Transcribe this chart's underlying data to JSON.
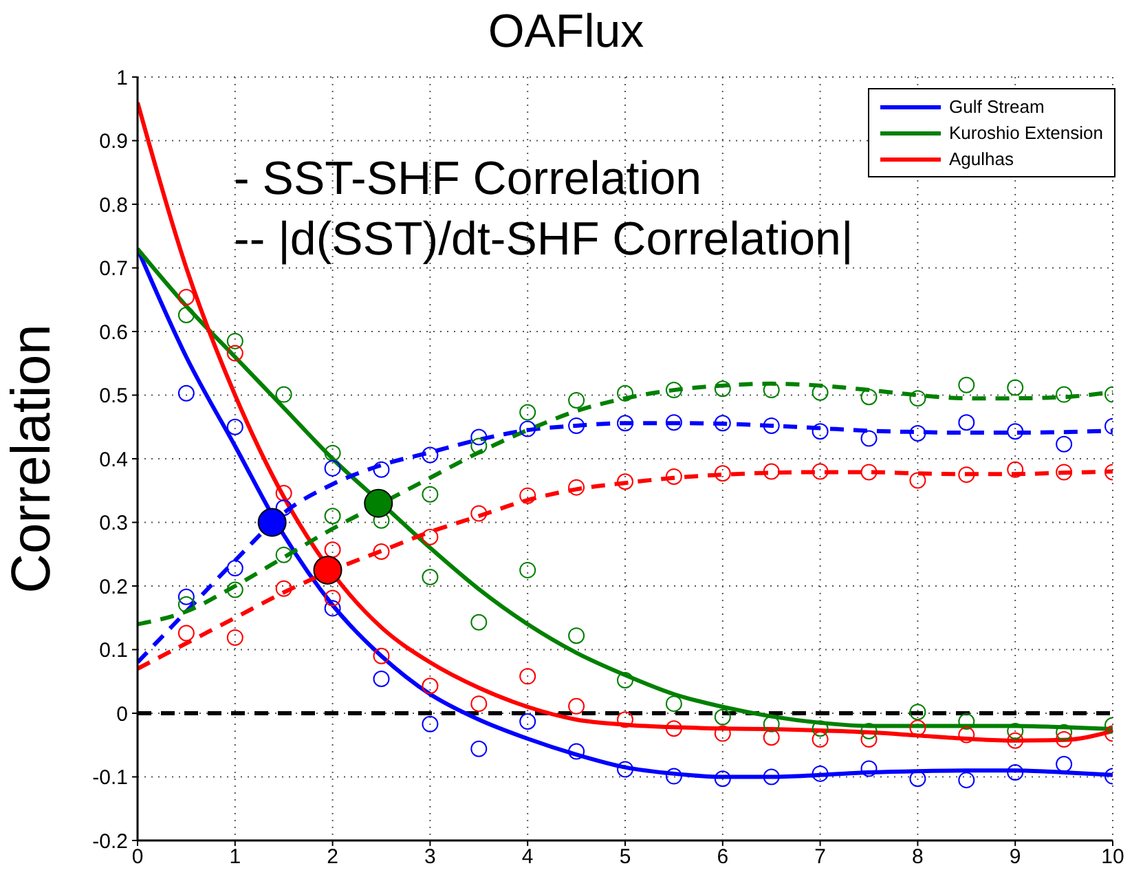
{
  "chart_data": {
    "type": "line",
    "title": "OAFlux",
    "ylabel": "Correlation",
    "annotations": [
      "- SST-SHF Correlation",
      "-- |d(SST)/dt-SHF Correlation|"
    ],
    "xlim": [
      0,
      10
    ],
    "xticks": [
      0,
      1,
      2,
      3,
      4,
      5,
      6,
      7,
      8,
      9,
      10
    ],
    "ylim": [
      -0.2,
      1
    ],
    "yticks": [
      -0.2,
      -0.1,
      0,
      0.1,
      0.2,
      0.3,
      0.4,
      0.5,
      0.6,
      0.7,
      0.8,
      0.9,
      1
    ],
    "grid": true,
    "legend": "top right",
    "ref_lines": [
      {
        "axis": "y",
        "value": 0,
        "color": "#000000",
        "line_style": "dashed"
      }
    ],
    "series": [
      {
        "type": "line",
        "name": "Gulf Stream",
        "color": "#0000ff",
        "line_style": "solid",
        "x": [
          0,
          0.5,
          1,
          1.5,
          2,
          2.5,
          3,
          3.5,
          4,
          4.5,
          5,
          5.5,
          6,
          6.5,
          7,
          7.5,
          8,
          8.5,
          9,
          9.5,
          10
        ],
        "values": [
          0.73,
          0.56,
          0.42,
          0.28,
          0.17,
          0.09,
          0.03,
          -0.01,
          -0.04,
          -0.065,
          -0.085,
          -0.095,
          -0.1,
          -0.1,
          -0.097,
          -0.093,
          -0.091,
          -0.09,
          -0.09,
          -0.093,
          -0.097
        ]
      },
      {
        "type": "line",
        "name": "Kuroshio Extension",
        "color": "#008000",
        "line_style": "solid",
        "x": [
          0,
          0.5,
          1,
          1.5,
          2,
          2.5,
          3,
          3.5,
          4,
          4.5,
          5,
          5.5,
          6,
          6.5,
          7,
          7.5,
          8,
          8.5,
          9,
          9.5,
          10
        ],
        "values": [
          0.73,
          0.64,
          0.56,
          0.48,
          0.4,
          0.33,
          0.26,
          0.195,
          0.14,
          0.095,
          0.06,
          0.03,
          0.01,
          -0.005,
          -0.015,
          -0.02,
          -0.02,
          -0.02,
          -0.02,
          -0.022,
          -0.025
        ]
      },
      {
        "type": "line",
        "name": "Agulhas",
        "color": "#ff0000",
        "line_style": "solid",
        "x": [
          0,
          0.5,
          1,
          1.5,
          2,
          2.5,
          3,
          3.5,
          4,
          4.5,
          5,
          5.5,
          6,
          6.5,
          7,
          7.5,
          8,
          8.5,
          9,
          9.5,
          10
        ],
        "values": [
          0.96,
          0.7,
          0.5,
          0.34,
          0.22,
          0.135,
          0.08,
          0.04,
          0.01,
          -0.01,
          -0.018,
          -0.022,
          -0.024,
          -0.025,
          -0.027,
          -0.03,
          -0.035,
          -0.04,
          -0.043,
          -0.042,
          -0.028
        ]
      },
      {
        "type": "line",
        "color": "#0000ff",
        "line_style": "dashed",
        "x": [
          0,
          0.5,
          1,
          1.5,
          2,
          2.5,
          3,
          3.5,
          4,
          4.5,
          5,
          5.5,
          6,
          6.5,
          7,
          7.5,
          8,
          8.5,
          9,
          9.5,
          10
        ],
        "values": [
          0.08,
          0.16,
          0.24,
          0.315,
          0.36,
          0.39,
          0.41,
          0.43,
          0.445,
          0.452,
          0.456,
          0.456,
          0.455,
          0.452,
          0.448,
          0.444,
          0.442,
          0.441,
          0.441,
          0.442,
          0.444
        ]
      },
      {
        "type": "line",
        "color": "#008000",
        "line_style": "dashed",
        "x": [
          0,
          0.5,
          1,
          1.5,
          2,
          2.5,
          3,
          3.5,
          4,
          4.5,
          5,
          5.5,
          6,
          6.5,
          7,
          7.5,
          8,
          8.5,
          9,
          9.5,
          10
        ],
        "values": [
          0.14,
          0.16,
          0.2,
          0.245,
          0.29,
          0.33,
          0.37,
          0.41,
          0.445,
          0.475,
          0.495,
          0.508,
          0.515,
          0.518,
          0.515,
          0.508,
          0.5,
          0.495,
          0.495,
          0.497,
          0.505
        ]
      },
      {
        "type": "line",
        "color": "#ff0000",
        "line_style": "dashed",
        "x": [
          0,
          0.5,
          1,
          1.5,
          2,
          2.5,
          3,
          3.5,
          4,
          4.5,
          5,
          5.5,
          6,
          6.5,
          7,
          7.5,
          8,
          8.5,
          9,
          9.5,
          10
        ],
        "values": [
          0.07,
          0.11,
          0.15,
          0.19,
          0.225,
          0.255,
          0.285,
          0.31,
          0.335,
          0.352,
          0.362,
          0.37,
          0.375,
          0.378,
          0.379,
          0.379,
          0.377,
          0.376,
          0.376,
          0.378,
          0.38
        ]
      },
      {
        "type": "scatter",
        "color": "#0000ff",
        "marker": "circle",
        "x": [
          0.5,
          1,
          1.5,
          2,
          2.5,
          3,
          3.5,
          4,
          4.5,
          5,
          5.5,
          6,
          6.5,
          7,
          7.5,
          8,
          8.5,
          9,
          9.5,
          10
        ],
        "values": [
          0.503,
          0.45,
          null,
          0.165,
          0.054,
          -0.017,
          -0.056,
          -0.013,
          -0.06,
          -0.088,
          -0.099,
          -0.103,
          -0.1,
          -0.095,
          -0.087,
          -0.103,
          -0.105,
          -0.093,
          -0.08,
          -0.099
        ]
      },
      {
        "type": "scatter",
        "color": "#008000",
        "marker": "circle",
        "x": [
          0.5,
          1,
          1.5,
          2,
          2.5,
          3,
          3.5,
          4,
          4.5,
          5,
          5.5,
          6,
          6.5,
          7,
          7.5,
          8,
          8.5,
          9,
          9.5,
          10
        ],
        "values": [
          0.626,
          0.585,
          0.501,
          0.409,
          0.303,
          0.214,
          0.143,
          0.225,
          0.122,
          0.052,
          0.015,
          -0.006,
          -0.017,
          -0.024,
          -0.028,
          0.002,
          -0.013,
          -0.028,
          -0.03,
          -0.019
        ]
      },
      {
        "type": "scatter",
        "color": "#ff0000",
        "marker": "circle",
        "x": [
          0.5,
          1,
          1.5,
          2,
          2.5,
          3,
          3.5,
          4,
          4.5,
          5,
          5.5,
          6,
          6.5,
          7,
          7.5,
          8,
          8.5,
          9,
          9.5,
          10
        ],
        "values": [
          0.654,
          0.566,
          0.346,
          0.181,
          0.09,
          0.043,
          0.015,
          0.058,
          0.011,
          -0.01,
          -0.024,
          -0.032,
          -0.038,
          -0.041,
          -0.041,
          -0.023,
          -0.034,
          -0.043,
          -0.041,
          -0.032
        ]
      },
      {
        "type": "scatter",
        "color": "#0000ff",
        "marker": "circle",
        "x": [
          0.5,
          1,
          1.5,
          2,
          2.5,
          3,
          3.5,
          4,
          4.5,
          5,
          5.5,
          6,
          6.5,
          7,
          7.5,
          8,
          8.5,
          9,
          9.5,
          10
        ],
        "values": [
          0.183,
          0.228,
          0.323,
          0.385,
          0.383,
          0.406,
          0.434,
          0.447,
          0.452,
          0.456,
          0.457,
          0.456,
          0.452,
          0.443,
          0.432,
          0.44,
          0.457,
          0.443,
          0.423,
          0.451
        ]
      },
      {
        "type": "scatter",
        "color": "#008000",
        "marker": "circle",
        "x": [
          0.5,
          1,
          1.5,
          2,
          2.5,
          3,
          3.5,
          4,
          4.5,
          5,
          5.5,
          6,
          6.5,
          7,
          7.5,
          8,
          8.5,
          9,
          9.5,
          10
        ],
        "values": [
          0.171,
          0.194,
          0.249,
          0.31,
          null,
          0.344,
          0.42,
          0.473,
          0.492,
          0.503,
          0.508,
          0.51,
          0.508,
          0.504,
          0.497,
          0.495,
          0.516,
          0.512,
          0.501,
          0.501
        ]
      },
      {
        "type": "scatter",
        "color": "#ff0000",
        "marker": "circle",
        "x": [
          0.5,
          1,
          1.5,
          2,
          2.5,
          3,
          3.5,
          4,
          4.5,
          5,
          5.5,
          6,
          6.5,
          7,
          7.5,
          8,
          8.5,
          9,
          9.5,
          10
        ],
        "values": [
          0.126,
          0.119,
          0.196,
          0.257,
          0.254,
          0.277,
          0.314,
          0.342,
          0.355,
          0.364,
          0.372,
          0.377,
          0.38,
          0.38,
          0.379,
          0.366,
          0.375,
          0.383,
          0.379,
          0.379
        ]
      },
      {
        "type": "scatter",
        "colors": [
          "#0000ff",
          "#ff0000",
          "#008000"
        ],
        "marker": "circle",
        "x": [
          1.38,
          1.95,
          2.47
        ],
        "values": [
          0.3,
          0.225,
          0.33
        ]
      }
    ]
  }
}
